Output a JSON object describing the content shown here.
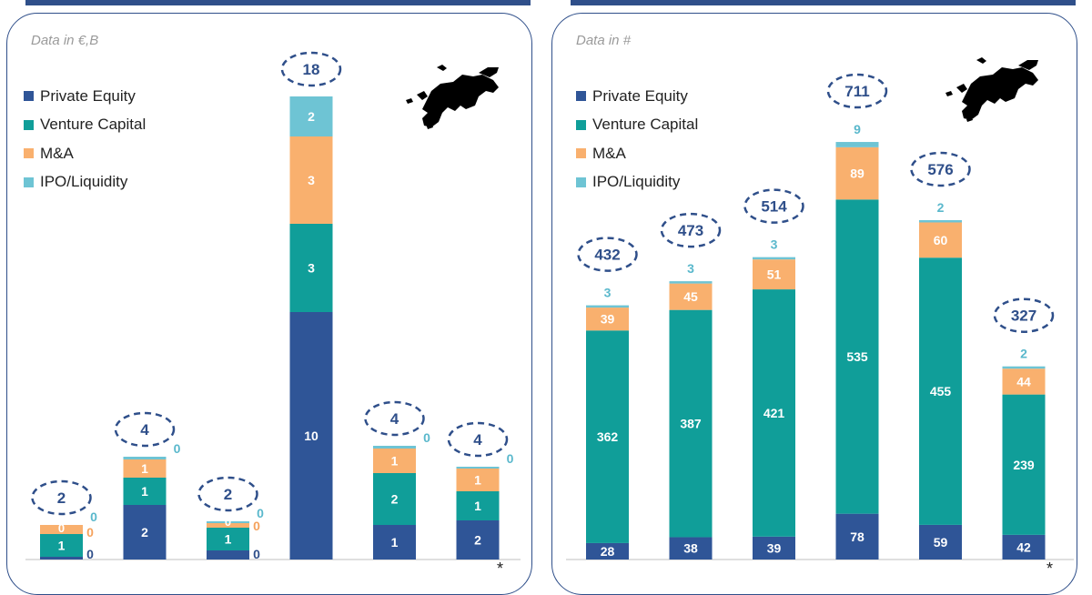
{
  "colors": {
    "private_equity": "#2f5597",
    "venture_capital": "#109e99",
    "m_and_a": "#f9b06e",
    "ipo_liquidity": "#6ec4d4",
    "ellipse": "#2f4f8a",
    "total_text": "#2f4f8a",
    "small_label_ma": "#f5a25d",
    "small_label_ipo": "#5ab8cc"
  },
  "chart_data": [
    {
      "type": "bar",
      "stacked": true,
      "note": "Data in €,B",
      "series": [
        {
          "name": "Private Equity",
          "values": [
            0,
            2,
            0,
            10,
            1,
            2
          ]
        },
        {
          "name": "Venture Capital",
          "values": [
            1,
            1,
            1,
            3,
            2,
            1
          ]
        },
        {
          "name": "M&A",
          "values": [
            0,
            1,
            0,
            3,
            1,
            1
          ]
        },
        {
          "name": "IPO/Liquidity",
          "values": [
            0,
            0,
            0,
            2,
            0,
            0
          ]
        }
      ],
      "totals": [
        "2",
        "4",
        "2",
        "18",
        "4",
        "4"
      ],
      "footnote": "*"
    },
    {
      "type": "bar",
      "stacked": true,
      "note": "Data in #",
      "series": [
        {
          "name": "Private Equity",
          "values": [
            28,
            38,
            39,
            78,
            59,
            42
          ]
        },
        {
          "name": "Venture Capital",
          "values": [
            362,
            387,
            421,
            535,
            455,
            239
          ]
        },
        {
          "name": "M&A",
          "values": [
            39,
            45,
            51,
            89,
            60,
            44
          ]
        },
        {
          "name": "IPO/Liquidity",
          "values": [
            3,
            3,
            3,
            9,
            2,
            2
          ]
        }
      ],
      "totals": [
        "432",
        "473",
        "514",
        "711",
        "576",
        "327"
      ],
      "footnote": "*"
    }
  ]
}
